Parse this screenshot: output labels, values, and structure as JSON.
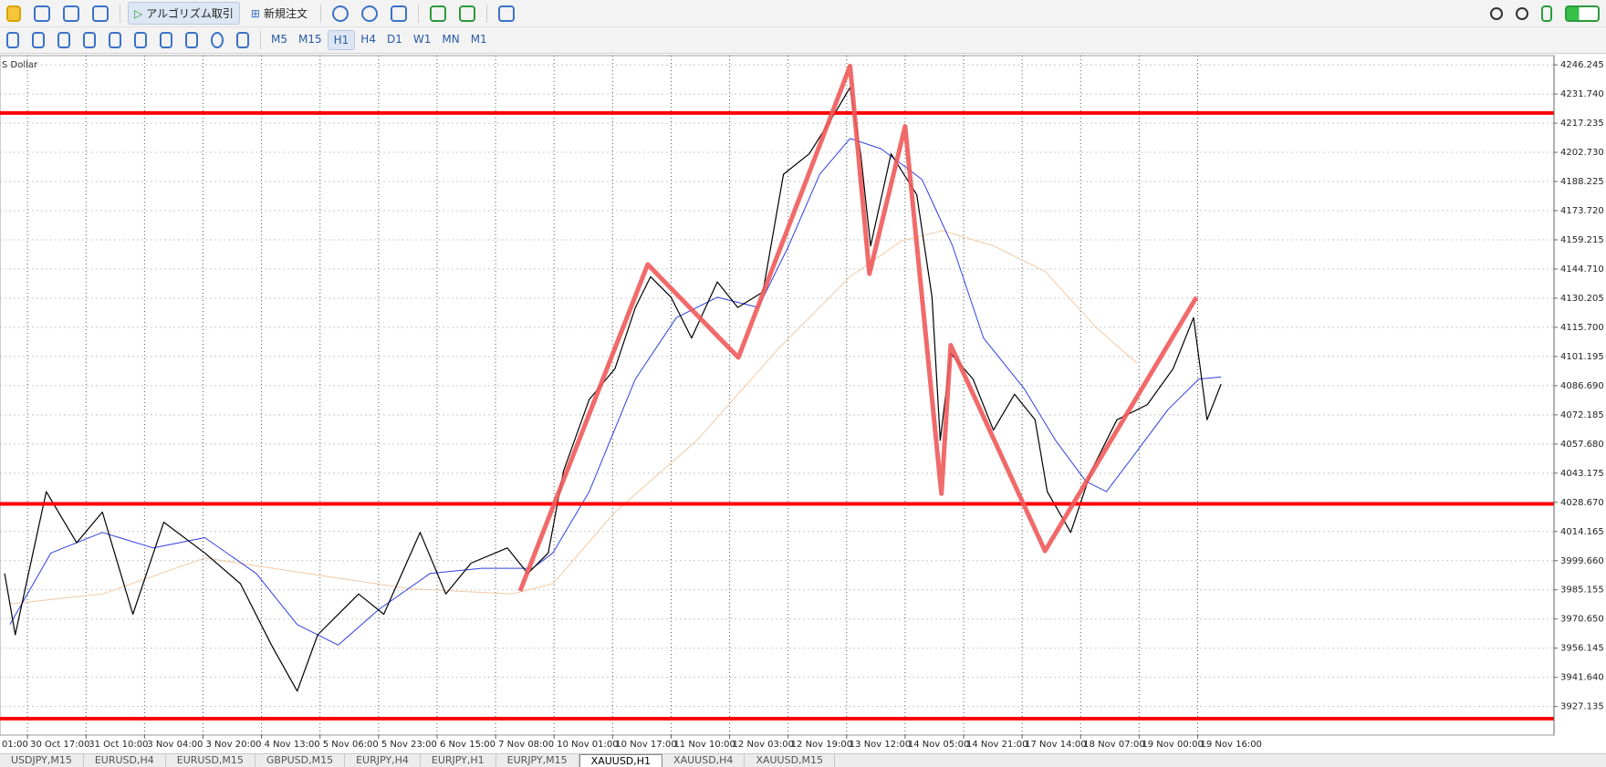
{
  "toolbar": {
    "algo_trading": "アルゴリズム取引",
    "new_order": "新規注文"
  },
  "timeframes": {
    "items": [
      "M5",
      "M15",
      "H1",
      "H4",
      "D1",
      "W1",
      "MN",
      "M1"
    ],
    "active": "H1"
  },
  "chart_data": {
    "type": "line",
    "symbol_label": "S Dollar",
    "grid": true,
    "xlim": [
      0.53,
      27.09
    ],
    "ylim": [
      3912.92,
      4250.83
    ],
    "xticks": [
      {
        "value": 0,
        "label": "01:00"
      },
      {
        "value": 1,
        "label": "30 Oct 17:00"
      },
      {
        "value": 2,
        "label": "31 Oct 10:00"
      },
      {
        "value": 3,
        "label": "3 Nov 04:00"
      },
      {
        "value": 4,
        "label": "3 Nov 20:00"
      },
      {
        "value": 5,
        "label": "4 Nov 13:00"
      },
      {
        "value": 6,
        "label": "5 Nov 06:00"
      },
      {
        "value": 7,
        "label": "5 Nov 23:00"
      },
      {
        "value": 8,
        "label": "6 Nov 15:00"
      },
      {
        "value": 9,
        "label": "7 Nov 08:00"
      },
      {
        "value": 10,
        "label": "10 Nov 01:00"
      },
      {
        "value": 11,
        "label": "10 Nov 17:00"
      },
      {
        "value": 12,
        "label": "11 Nov 10:00"
      },
      {
        "value": 13,
        "label": "12 Nov 03:00"
      },
      {
        "value": 14,
        "label": "12 Nov 19:00"
      },
      {
        "value": 15,
        "label": "13 Nov 12:00"
      },
      {
        "value": 16,
        "label": "14 Nov 05:00"
      },
      {
        "value": 17,
        "label": "14 Nov 21:00"
      },
      {
        "value": 18,
        "label": "17 Nov 14:00"
      },
      {
        "value": 19,
        "label": "18 Nov 07:00"
      },
      {
        "value": 20,
        "label": "19 Nov 00:00"
      },
      {
        "value": 21,
        "label": "19 Nov 16:00"
      }
    ],
    "yticks": [
      4246.245,
      {
        "value": 4231.74,
        "label": "4231.740"
      },
      4217.235,
      {
        "value": 4202.73,
        "label": "4202.730"
      },
      4188.225,
      {
        "value": 4173.72,
        "label": "4173.720"
      },
      4159.215,
      {
        "value": 4144.71,
        "label": "4144.710"
      },
      4130.205,
      {
        "value": 4115.7,
        "label": "4115.700"
      },
      4101.195,
      {
        "value": 4086.69,
        "label": "4086.690"
      },
      4072.185,
      {
        "value": 4057.68,
        "label": "4057.680"
      },
      4043.175,
      {
        "value": 4028.67,
        "label": "4028.670"
      },
      4014.165,
      {
        "value": 3999.66,
        "label": "3999.660"
      },
      3985.155,
      {
        "value": 3970.65,
        "label": "3970.650"
      },
      3956.145,
      {
        "value": 3941.64,
        "label": "3941.640"
      },
      3927.135
    ],
    "series": [
      {
        "color": "#000000",
        "width": 1.2,
        "x": [
          0.61,
          0.79,
          1.32,
          1.84,
          2.28,
          2.8,
          3.33,
          4.03,
          4.64,
          5.17,
          5.61,
          5.96,
          6.66,
          7.09,
          7.71,
          8.15,
          8.58,
          9.2,
          9.55,
          9.9,
          10.16,
          10.6,
          11.04,
          11.39,
          11.65,
          12.0,
          12.35,
          12.79,
          13.14,
          13.57,
          13.92,
          14.36,
          14.8,
          15.06,
          15.24,
          15.41,
          15.76,
          16.2,
          16.46,
          16.6,
          16.78,
          17.16,
          17.51,
          17.87,
          18.22,
          18.43,
          18.83,
          19.18,
          19.62,
          20.14,
          20.58,
          20.93,
          21.16,
          21.4
        ],
        "values": [
          3993.3,
          3962.8,
          4034.0,
          4008.6,
          4023.8,
          3973.0,
          4018.8,
          4003.5,
          3988.2,
          3957.7,
          3934.8,
          3962.8,
          3983.1,
          3973.0,
          4013.7,
          3983.1,
          3998.4,
          4006.0,
          3993.3,
          4003.5,
          4044.2,
          4079.8,
          4095.1,
          4125.6,
          4140.9,
          4130.7,
          4110.4,
          4138.3,
          4125.6,
          4133.3,
          4191.8,
          4202.0,
          4222.3,
          4235.0,
          4202.0,
          4156.2,
          4202.0,
          4181.6,
          4130.7,
          4059.5,
          4102.7,
          4090.0,
          4064.6,
          4082.4,
          4069.7,
          4034.0,
          4013.7,
          4044.2,
          4069.7,
          4077.3,
          4095.1,
          4120.5,
          4069.7,
          4087.5
        ]
      },
      {
        "color": "#2f3fe0",
        "width": 1,
        "x": [
          0.7,
          1.4,
          2.28,
          3.15,
          4.03,
          4.91,
          5.61,
          6.31,
          7.01,
          7.88,
          8.76,
          9.63,
          9.98,
          10.6,
          11.39,
          12.09,
          12.79,
          13.49,
          14.01,
          14.54,
          15.06,
          15.59,
          16.29,
          16.81,
          17.34,
          18.04,
          18.57,
          19.09,
          19.44,
          19.97,
          20.49,
          21.02,
          21.4
        ],
        "values": [
          3967.9,
          4003.5,
          4013.7,
          4006.0,
          4011.1,
          3993.3,
          3967.9,
          3957.7,
          3975.5,
          3993.3,
          3995.9,
          3995.9,
          4003.5,
          4034.0,
          4090.0,
          4120.5,
          4130.7,
          4125.6,
          4156.2,
          4191.8,
          4209.6,
          4204.5,
          4189.2,
          4156.2,
          4110.4,
          4085.0,
          4059.5,
          4039.1,
          4034.0,
          4054.4,
          4074.7,
          4090.0,
          4091.0
        ]
      },
      {
        "color": "#f2c9a4",
        "width": 1,
        "x": [
          0.7,
          2.28,
          4.03,
          5.78,
          7.53,
          9.28,
          9.98,
          11.04,
          12.44,
          13.84,
          15.06,
          15.94,
          16.64,
          17.51,
          18.39,
          19.27,
          19.97
        ],
        "values": [
          3978.1,
          3983.1,
          4001.0,
          3993.3,
          3985.7,
          3983.1,
          3988.2,
          4023.8,
          4059.5,
          4105.3,
          4140.9,
          4158.7,
          4163.8,
          4156.2,
          4143.5,
          4115.5,
          4097.7
        ]
      }
    ],
    "levels": {
      "color": "#ff0000",
      "values": [
        4222.3,
        4027.9,
        3921.1
      ]
    },
    "zigzag": {
      "color": "#f05a5a",
      "x": [
        9.42,
        11.6,
        13.15,
        15.06,
        15.39,
        16.0,
        16.62,
        16.78,
        18.39,
        20.98
      ],
      "values": [
        3984.6,
        4147.0,
        4100.7,
        4245.7,
        4142.4,
        4215.7,
        4033.0,
        4106.8,
        4004.5,
        4130.7
      ]
    }
  },
  "tabs": {
    "items": [
      "USDJPY,M15",
      "EURUSD,H4",
      "EURUSD,M15",
      "GBPUSD,M15",
      "EURJPY,H4",
      "EURJPY,H1",
      "EURJPY,M15",
      "XAUUSD,H1",
      "XAUUSD,H4",
      "XAUUSD,M15"
    ],
    "active": "XAUUSD,H1"
  }
}
